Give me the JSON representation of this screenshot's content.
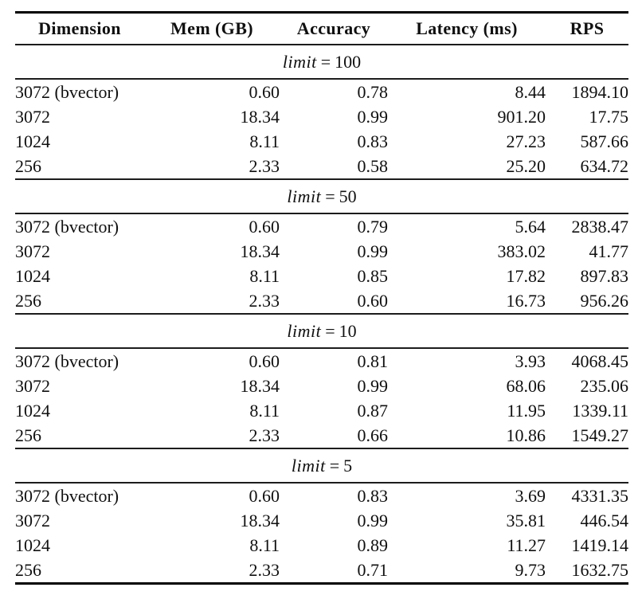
{
  "page": {
    "background_color": "#ffffff",
    "text_color": "#101010",
    "rule_color_heavy": "#000000",
    "rule_color_light": "#1c1c1c"
  },
  "table": {
    "columns": [
      {
        "key": "dimension",
        "label": "Dimension"
      },
      {
        "key": "mem-gb",
        "label": "Mem (GB)"
      },
      {
        "key": "accuracy",
        "label": "Accuracy"
      },
      {
        "key": "latency-ms",
        "label": "Latency (ms)"
      },
      {
        "key": "rps",
        "label": "RPS"
      }
    ],
    "sections": [
      {
        "title": {
          "var": "limit",
          "rel": "=",
          "value": "100"
        },
        "rows": [
          [
            "3072 (bvector)",
            "0.60",
            "0.78",
            "8.44",
            "1894.10"
          ],
          [
            "3072",
            "18.34",
            "0.99",
            "901.20",
            "17.75"
          ],
          [
            "1024",
            "8.11",
            "0.83",
            "27.23",
            "587.66"
          ],
          [
            "256",
            "2.33",
            "0.58",
            "25.20",
            "634.72"
          ]
        ]
      },
      {
        "title": {
          "var": "limit",
          "rel": "=",
          "value": "50"
        },
        "rows": [
          [
            "3072 (bvector)",
            "0.60",
            "0.79",
            "5.64",
            "2838.47"
          ],
          [
            "3072",
            "18.34",
            "0.99",
            "383.02",
            "41.77"
          ],
          [
            "1024",
            "8.11",
            "0.85",
            "17.82",
            "897.83"
          ],
          [
            "256",
            "2.33",
            "0.60",
            "16.73",
            "956.26"
          ]
        ]
      },
      {
        "title": {
          "var": "limit",
          "rel": "=",
          "value": "10"
        },
        "rows": [
          [
            "3072 (bvector)",
            "0.60",
            "0.81",
            "3.93",
            "4068.45"
          ],
          [
            "3072",
            "18.34",
            "0.99",
            "68.06",
            "235.06"
          ],
          [
            "1024",
            "8.11",
            "0.87",
            "11.95",
            "1339.11"
          ],
          [
            "256",
            "2.33",
            "0.66",
            "10.86",
            "1549.27"
          ]
        ]
      },
      {
        "title": {
          "var": "limit",
          "rel": "=",
          "value": "5"
        },
        "rows": [
          [
            "3072 (bvector)",
            "0.60",
            "0.83",
            "3.69",
            "4331.35"
          ],
          [
            "3072",
            "18.34",
            "0.99",
            "35.81",
            "446.54"
          ],
          [
            "1024",
            "8.11",
            "0.89",
            "11.27",
            "1419.14"
          ],
          [
            "256",
            "2.33",
            "0.71",
            "9.73",
            "1632.75"
          ]
        ]
      }
    ]
  },
  "chart_data": {
    "type": "table",
    "title": "",
    "columns": [
      "Dimension",
      "Mem (GB)",
      "Accuracy",
      "Latency (ms)",
      "RPS"
    ],
    "groups": [
      {
        "group_label": "limit = 100",
        "rows": [
          {
            "dimension": "3072 (bvector)",
            "mem_gb": 0.6,
            "accuracy": 0.78,
            "latency_ms": 8.44,
            "rps": 1894.1
          },
          {
            "dimension": "3072",
            "mem_gb": 18.34,
            "accuracy": 0.99,
            "latency_ms": 901.2,
            "rps": 17.75
          },
          {
            "dimension": "1024",
            "mem_gb": 8.11,
            "accuracy": 0.83,
            "latency_ms": 27.23,
            "rps": 587.66
          },
          {
            "dimension": "256",
            "mem_gb": 2.33,
            "accuracy": 0.58,
            "latency_ms": 25.2,
            "rps": 634.72
          }
        ]
      },
      {
        "group_label": "limit = 50",
        "rows": [
          {
            "dimension": "3072 (bvector)",
            "mem_gb": 0.6,
            "accuracy": 0.79,
            "latency_ms": 5.64,
            "rps": 2838.47
          },
          {
            "dimension": "3072",
            "mem_gb": 18.34,
            "accuracy": 0.99,
            "latency_ms": 383.02,
            "rps": 41.77
          },
          {
            "dimension": "1024",
            "mem_gb": 8.11,
            "accuracy": 0.85,
            "latency_ms": 17.82,
            "rps": 897.83
          },
          {
            "dimension": "256",
            "mem_gb": 2.33,
            "accuracy": 0.6,
            "latency_ms": 16.73,
            "rps": 956.26
          }
        ]
      },
      {
        "group_label": "limit = 10",
        "rows": [
          {
            "dimension": "3072 (bvector)",
            "mem_gb": 0.6,
            "accuracy": 0.81,
            "latency_ms": 3.93,
            "rps": 4068.45
          },
          {
            "dimension": "3072",
            "mem_gb": 18.34,
            "accuracy": 0.99,
            "latency_ms": 68.06,
            "rps": 235.06
          },
          {
            "dimension": "1024",
            "mem_gb": 8.11,
            "accuracy": 0.87,
            "latency_ms": 11.95,
            "rps": 1339.11
          },
          {
            "dimension": "256",
            "mem_gb": 2.33,
            "accuracy": 0.66,
            "latency_ms": 10.86,
            "rps": 1549.27
          }
        ]
      },
      {
        "group_label": "limit = 5",
        "rows": [
          {
            "dimension": "3072 (bvector)",
            "mem_gb": 0.6,
            "accuracy": 0.83,
            "latency_ms": 3.69,
            "rps": 4331.35
          },
          {
            "dimension": "3072",
            "mem_gb": 18.34,
            "accuracy": 0.99,
            "latency_ms": 35.81,
            "rps": 446.54
          },
          {
            "dimension": "1024",
            "mem_gb": 8.11,
            "accuracy": 0.89,
            "latency_ms": 11.27,
            "rps": 1419.14
          },
          {
            "dimension": "256",
            "mem_gb": 2.33,
            "accuracy": 0.71,
            "latency_ms": 9.73,
            "rps": 1632.75
          }
        ]
      }
    ]
  }
}
